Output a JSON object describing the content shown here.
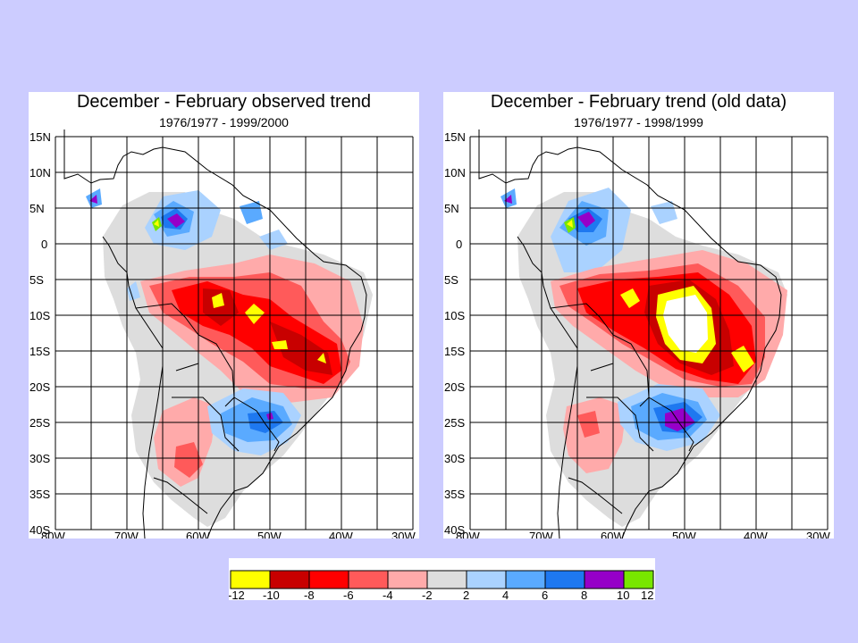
{
  "panels": [
    {
      "title": "December - February observed trend",
      "subtitle": "1976/1977 - 1999/2000",
      "lat_labels": [
        "15N",
        "10N",
        "5N",
        "0",
        "5S",
        "10S",
        "15S",
        "20S",
        "25S",
        "30S",
        "35S",
        "40S"
      ],
      "lon_labels": [
        "80W",
        "70W",
        "60W",
        "50W",
        "40W",
        "30W"
      ]
    },
    {
      "title": "December - February trend (old data)",
      "subtitle": "1976/1977 - 1998/1999",
      "lat_labels": [
        "15N",
        "10N",
        "5N",
        "0",
        "5S",
        "10S",
        "15S",
        "20S",
        "25S",
        "30S",
        "35S",
        "40S"
      ],
      "lon_labels": [
        "80W",
        "70W",
        "60W",
        "50W",
        "40W",
        "30W"
      ]
    }
  ],
  "legend": {
    "labels": [
      "-12",
      "-10",
      "-8",
      "-6",
      "-4",
      "-2",
      "2",
      "4",
      "6",
      "8",
      "10",
      "12"
    ],
    "colors": [
      "#ffff00",
      "#c80000",
      "#ff0000",
      "#ff5a5a",
      "#ffaaaa",
      "#dddddd",
      "#aad2ff",
      "#5aaaff",
      "#1e78f0",
      "#9600c8",
      "#78e600"
    ]
  }
}
